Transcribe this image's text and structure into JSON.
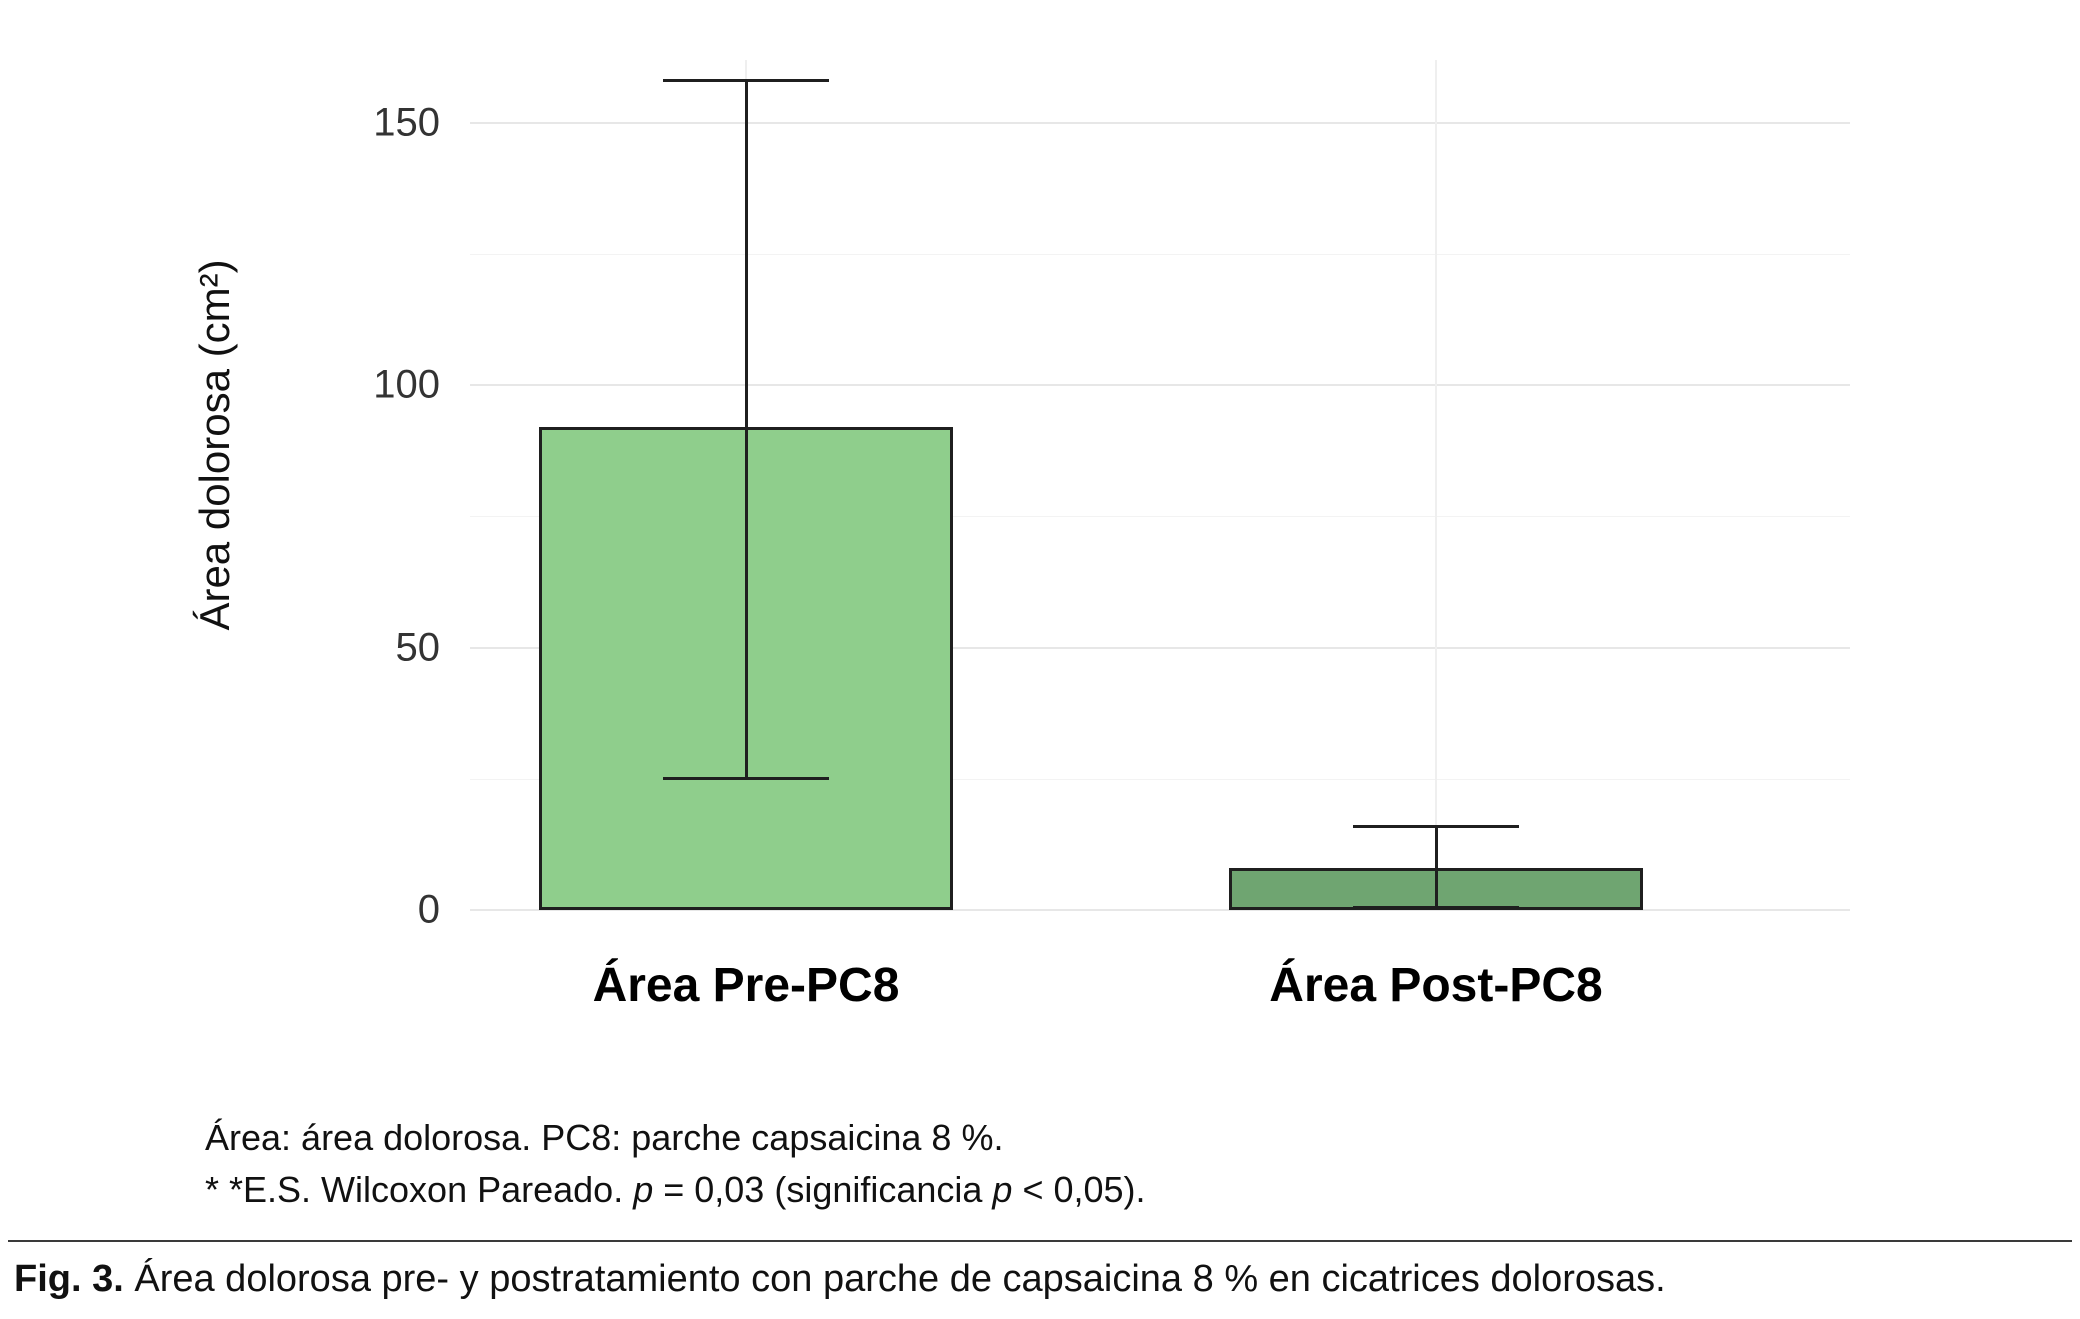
{
  "chart_data": {
    "type": "bar",
    "categories": [
      "Área Pre-PC8",
      "Área Post-PC8"
    ],
    "values": [
      92,
      8
    ],
    "error_low": [
      25,
      0.5
    ],
    "error_high": [
      158,
      16
    ],
    "title": "",
    "xlabel": "",
    "ylabel": "Área dolorosa (cm²)",
    "ylim": [
      0,
      162
    ],
    "yticks": [
      0,
      50,
      100,
      150
    ],
    "minor_ticks": [
      25,
      75,
      125
    ],
    "bar_colors": [
      "#8fce8c",
      "#6fa571"
    ],
    "bar_border_color": "#1f1f1f",
    "error_bar_color": "#1f1f1f",
    "grid": true,
    "legend": false
  },
  "footnotes": {
    "line1": "Área: área dolorosa. PC8: parche capsaicina 8 %.",
    "line2_parts": [
      "* *E.S. Wilcoxon Pareado. ",
      "p",
      " = 0,03 (significancia ",
      "p",
      " < 0,05)."
    ]
  },
  "caption": {
    "label": "Fig. 3.",
    "text": "Área dolorosa pre- y postratamiento con parche de capsaicina 8 % en cicatrices dolorosas."
  }
}
